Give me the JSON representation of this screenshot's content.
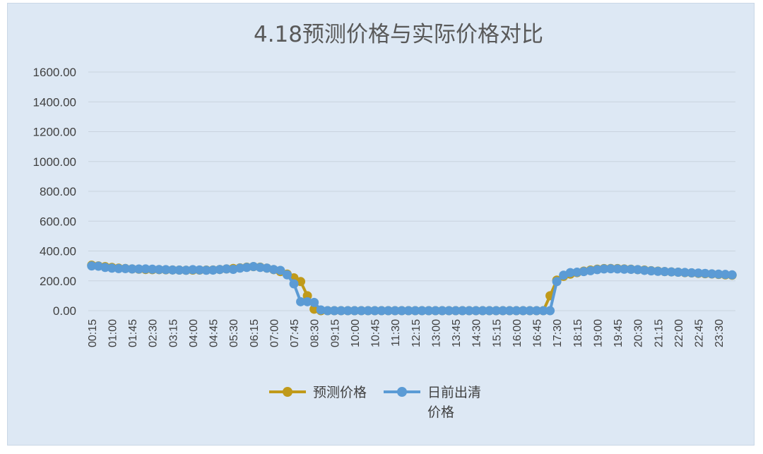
{
  "chart_data": {
    "type": "line",
    "title": "4.18预测价格与实际价格对比",
    "xlabel": "",
    "ylabel": "",
    "ylim": [
      0,
      1600
    ],
    "yticks": [
      "0.00",
      "200.00",
      "400.00",
      "600.00",
      "800.00",
      "1000.00",
      "1200.00",
      "1400.00",
      "1600.00"
    ],
    "xtick_labels": [
      "00:15",
      "01:00",
      "01:45",
      "02:30",
      "03:15",
      "04:00",
      "04:45",
      "05:30",
      "06:15",
      "07:00",
      "07:45",
      "08:30",
      "09:15",
      "10:00",
      "10:45",
      "11:30",
      "12:15",
      "13:00",
      "13:45",
      "14:30",
      "15:15",
      "16:00",
      "16:45",
      "17:30",
      "18:15",
      "19:00",
      "19:45",
      "20:30",
      "21:15",
      "22:00",
      "22:45",
      "23:30"
    ],
    "x": [
      "00:15",
      "00:30",
      "00:45",
      "01:00",
      "01:15",
      "01:30",
      "01:45",
      "02:00",
      "02:15",
      "02:30",
      "02:45",
      "03:00",
      "03:15",
      "03:30",
      "03:45",
      "04:00",
      "04:15",
      "04:30",
      "04:45",
      "05:00",
      "05:15",
      "05:30",
      "05:45",
      "06:00",
      "06:15",
      "06:30",
      "06:45",
      "07:00",
      "07:15",
      "07:30",
      "07:45",
      "08:00",
      "08:15",
      "08:30",
      "08:45",
      "09:00",
      "09:15",
      "09:30",
      "09:45",
      "10:00",
      "10:15",
      "10:30",
      "10:45",
      "11:00",
      "11:15",
      "11:30",
      "11:45",
      "12:00",
      "12:15",
      "12:30",
      "12:45",
      "13:00",
      "13:15",
      "13:30",
      "13:45",
      "14:00",
      "14:15",
      "14:30",
      "14:45",
      "15:00",
      "15:15",
      "15:30",
      "15:45",
      "16:00",
      "16:15",
      "16:30",
      "16:45",
      "17:00",
      "17:15",
      "17:30",
      "17:45",
      "18:00",
      "18:15",
      "18:30",
      "18:45",
      "19:00",
      "19:15",
      "19:30",
      "19:45",
      "20:00",
      "20:15",
      "20:30",
      "20:45",
      "21:00",
      "21:15",
      "21:30",
      "21:45",
      "22:00",
      "22:15",
      "22:30",
      "22:45",
      "23:00",
      "23:15",
      "23:30",
      "23:45",
      "24:00"
    ],
    "series": [
      {
        "name": "预测价格",
        "color": "#c09a1a",
        "values": [
          305,
          300,
          295,
          290,
          285,
          283,
          280,
          278,
          276,
          275,
          275,
          274,
          273,
          272,
          271,
          272,
          272,
          272,
          273,
          276,
          280,
          283,
          287,
          292,
          295,
          292,
          285,
          275,
          262,
          245,
          220,
          195,
          100,
          10,
          0,
          0,
          0,
          0,
          0,
          0,
          0,
          0,
          0,
          0,
          0,
          0,
          0,
          0,
          0,
          0,
          0,
          0,
          0,
          0,
          0,
          0,
          0,
          0,
          0,
          0,
          0,
          0,
          0,
          0,
          0,
          0,
          0,
          0,
          100,
          205,
          230,
          245,
          255,
          265,
          272,
          278,
          282,
          283,
          282,
          280,
          278,
          275,
          272,
          268,
          265,
          262,
          260,
          258,
          255,
          253,
          250,
          248,
          246,
          243,
          240,
          238
        ]
      },
      {
        "name": "日前出清价格",
        "color": "#5b9bd5",
        "values": [
          300,
          298,
          290,
          285,
          282,
          282,
          280,
          279,
          280,
          278,
          276,
          275,
          273,
          272,
          271,
          275,
          273,
          271,
          272,
          276,
          280,
          277,
          285,
          290,
          296,
          290,
          285,
          276,
          270,
          240,
          180,
          60,
          60,
          55,
          5,
          0,
          0,
          0,
          0,
          0,
          0,
          0,
          0,
          0,
          0,
          0,
          0,
          0,
          0,
          0,
          0,
          0,
          0,
          0,
          0,
          0,
          0,
          0,
          0,
          0,
          0,
          0,
          0,
          0,
          0,
          0,
          0,
          0,
          0,
          195,
          238,
          255,
          258,
          262,
          268,
          275,
          280,
          281,
          280,
          278,
          277,
          275,
          270,
          267,
          264,
          262,
          260,
          258,
          256,
          254,
          252,
          250,
          247,
          245,
          243,
          240
        ]
      }
    ],
    "legend": {
      "position": "bottom",
      "entries": [
        "预测价格",
        "日前出清\n价格"
      ]
    },
    "grid": true
  }
}
